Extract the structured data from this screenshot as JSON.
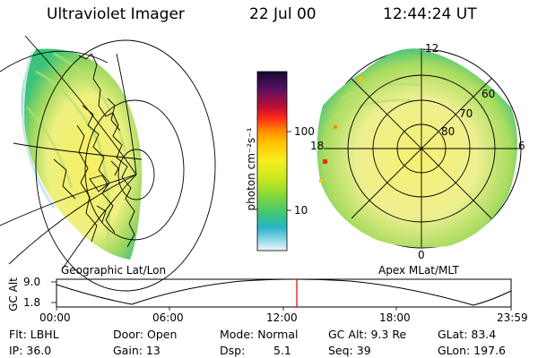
{
  "header": {
    "instrument": "Ultraviolet Imager",
    "date": "22 Jul 00",
    "time": "12:44:24 UT"
  },
  "colorbar": {
    "unit_label": "photon cm⁻²s⁻¹",
    "tick_labels": [
      "100",
      "10"
    ],
    "colors": [
      "#1a0a3c",
      "#5a1060",
      "#c01030",
      "#ff2020",
      "#ff8a00",
      "#ffc000",
      "#f6ef20",
      "#c8e820",
      "#7ed63a",
      "#3cc47a",
      "#28b4c8",
      "#90d8e8",
      "#e8f4f8"
    ]
  },
  "left_panel": {
    "caption": "Geographic Lat/Lon"
  },
  "right_panel": {
    "caption": "Apex MLat/MLT",
    "mlt_labels": {
      "top": "12",
      "left": "18",
      "right": "6",
      "bottom": "0"
    },
    "lat_labels": [
      "60",
      "70",
      "80"
    ]
  },
  "altitude_plot": {
    "y_label": "GC Alt",
    "y_ticks": [
      "9.0",
      "1.8"
    ],
    "x_ticks": [
      "00:00",
      "06:00",
      "12:00",
      "18:00",
      "23:59"
    ],
    "current_time_color": "#e00000"
  },
  "info": {
    "filter": "Flt: LBHL",
    "door": "Door: Open",
    "mode": "Mode: Normal",
    "gc_alt": "GC Alt: 9.3 Re",
    "glat": "GLat: 83.4",
    "ip": "IP: 36.0",
    "gain": "Gain: 13",
    "dsp_label": "Dsp:",
    "dsp_value": "5.1",
    "seq": "Seq: 39",
    "glon": "GLon: 197.6"
  }
}
